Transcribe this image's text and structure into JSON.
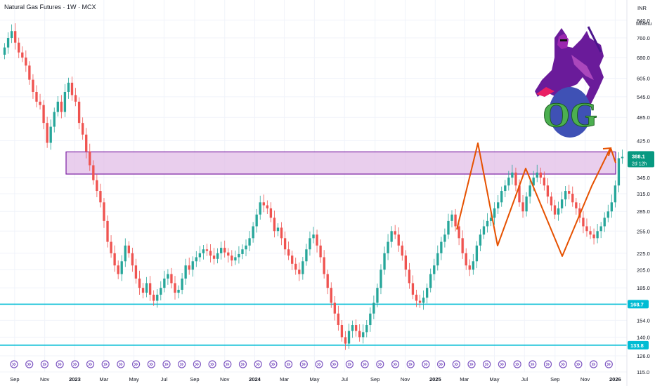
{
  "title": "Natural Gas Futures · 1W · MCX",
  "currency": "INR",
  "unit": "MMBtu",
  "colors": {
    "up": "#26a69a",
    "down": "#ef5350",
    "zone_fill": "#e1bee7",
    "zone_border": "#7b1fa2",
    "support_line": "#00bcd4",
    "pattern_line": "#e65100",
    "price_badge": "#089981",
    "support_badge": "#00bcd4"
  },
  "price_badge": {
    "value": "388.1",
    "countdown": "2d 12h"
  },
  "support_labels": [
    "168.7",
    "133.8"
  ],
  "logo": {
    "text": "OG",
    "icon": "knight-on-horse-icon"
  },
  "chart_data": {
    "type": "candlestick",
    "y_scale": "log",
    "ylim": [
      115,
      905
    ],
    "y_ticks": [
      "840.0",
      "760.0",
      "680.0",
      "605.0",
      "545.0",
      "485.0",
      "425.0",
      "345.0",
      "315.0",
      "285.0",
      "255.0",
      "225.0",
      "205.0",
      "185.0",
      "154.0",
      "140.0",
      "126.0",
      "115.0"
    ],
    "x_ticks": [
      "Sep",
      "Nov",
      "2023",
      "Mar",
      "May",
      "Jul",
      "Sep",
      "Nov",
      "2024",
      "Mar",
      "May",
      "Jul",
      "Sep",
      "Nov",
      "2025",
      "Mar",
      "May",
      "Jul",
      "Sep",
      "Nov",
      "2026"
    ],
    "x_range": [
      "2022-08-08",
      "2026-01-19"
    ],
    "weeks": 175,
    "first_week": "2022-08-08",
    "closes": [
      720,
      760,
      790,
      740,
      700,
      680,
      650,
      600,
      560,
      530,
      520,
      470,
      420,
      460,
      500,
      530,
      500,
      560,
      590,
      550,
      530,
      470,
      440,
      400,
      370,
      340,
      320,
      300,
      270,
      240,
      225,
      210,
      200,
      215,
      235,
      225,
      210,
      195,
      185,
      180,
      190,
      178,
      172,
      178,
      185,
      195,
      200,
      190,
      180,
      183,
      195,
      210,
      205,
      215,
      220,
      225,
      230,
      228,
      222,
      218,
      225,
      232,
      226,
      222,
      216,
      220,
      224,
      230,
      235,
      245,
      262,
      280,
      300,
      295,
      290,
      275,
      255,
      260,
      245,
      230,
      222,
      212,
      205,
      200,
      215,
      230,
      245,
      250,
      235,
      220,
      200,
      185,
      170,
      160,
      150,
      140,
      135,
      145,
      150,
      145,
      140,
      144,
      150,
      160,
      170,
      185,
      205,
      225,
      240,
      255,
      250,
      235,
      222,
      205,
      190,
      178,
      172,
      170,
      175,
      185,
      200,
      210,
      225,
      240,
      250,
      270,
      280,
      262,
      245,
      225,
      210,
      205,
      215,
      235,
      250,
      262,
      270,
      275,
      290,
      300,
      320,
      330,
      345,
      355,
      330,
      300,
      285,
      310,
      330,
      345,
      355,
      345,
      330,
      310,
      295,
      280,
      290,
      305,
      320,
      315,
      300,
      290,
      275,
      262,
      255,
      250,
      245,
      255,
      262,
      275,
      285,
      300,
      330,
      385,
      388
    ]
  }
}
